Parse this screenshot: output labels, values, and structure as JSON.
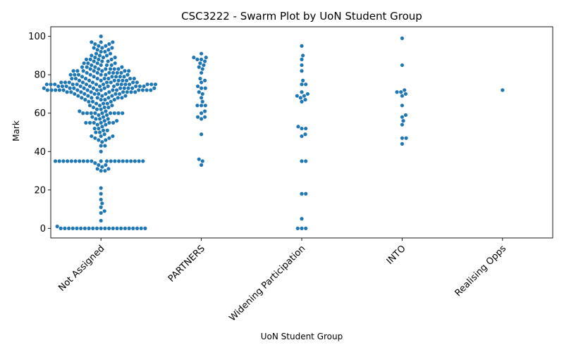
{
  "chart_data": {
    "type": "scatter",
    "subtype": "swarm",
    "title": "CSC3222 - Swarm Plot by UoN Student Group",
    "xlabel": "UoN Student Group",
    "ylabel": "Mark",
    "categories": [
      "Not Assigned",
      "PARTNERS",
      "Widening Participation",
      "INTO",
      "Realising Opps"
    ],
    "ylim": [
      -5,
      105
    ],
    "yticks": [
      0,
      20,
      40,
      60,
      80,
      100
    ],
    "ytick_labels": [
      "0",
      "20",
      "40",
      "60",
      "80",
      "100"
    ],
    "point_color": "#1f77b4",
    "grid": false,
    "series": [
      {
        "category": "Not Assigned",
        "values": [
          0,
          0,
          0,
          0,
          0,
          0,
          0,
          0,
          0,
          0,
          0,
          0,
          0,
          0,
          0,
          0,
          0,
          0,
          0,
          0,
          0,
          0,
          1,
          4,
          8,
          9,
          11,
          13,
          15,
          18,
          21,
          30,
          30,
          31,
          31,
          32,
          33,
          33,
          34,
          35,
          35,
          35,
          35,
          35,
          35,
          35,
          35,
          35,
          35,
          35,
          35,
          35,
          35,
          35,
          35,
          35,
          35,
          35,
          35,
          35,
          40,
          43,
          43,
          45,
          46,
          46,
          47,
          47,
          48,
          48,
          48,
          49,
          50,
          50,
          51,
          51,
          52,
          52,
          53,
          54,
          54,
          55,
          55,
          55,
          55,
          55,
          55,
          56,
          56,
          57,
          57,
          57,
          58,
          58,
          59,
          59,
          60,
          60,
          60,
          60,
          60,
          60,
          60,
          60,
          60,
          61,
          61,
          62,
          62,
          63,
          63,
          63,
          64,
          64,
          64,
          65,
          65,
          65,
          66,
          66,
          66,
          67,
          67,
          67,
          67,
          68,
          68,
          68,
          68,
          68,
          68,
          69,
          69,
          69,
          69,
          69,
          70,
          70,
          70,
          70,
          70,
          70,
          70,
          71,
          71,
          71,
          71,
          71,
          71,
          71,
          71,
          71,
          72,
          72,
          72,
          72,
          72,
          72,
          72,
          72,
          72,
          72,
          72,
          72,
          72,
          72,
          72,
          73,
          73,
          73,
          73,
          73,
          73,
          73,
          73,
          73,
          73,
          73,
          74,
          74,
          74,
          74,
          74,
          74,
          74,
          74,
          74,
          74,
          74,
          75,
          75,
          75,
          75,
          75,
          75,
          75,
          75,
          75,
          75,
          75,
          75,
          75,
          75,
          75,
          76,
          76,
          76,
          76,
          76,
          76,
          76,
          76,
          76,
          77,
          77,
          77,
          77,
          77,
          77,
          77,
          78,
          78,
          78,
          78,
          78,
          78,
          78,
          78,
          79,
          79,
          79,
          79,
          79,
          79,
          80,
          80,
          80,
          80,
          80,
          80,
          80,
          81,
          81,
          81,
          81,
          81,
          81,
          82,
          82,
          82,
          82,
          82,
          82,
          82,
          83,
          83,
          83,
          83,
          83,
          83,
          84,
          84,
          84,
          84,
          85,
          85,
          85,
          85,
          86,
          86,
          86,
          86,
          87,
          87,
          87,
          88,
          88,
          88,
          88,
          89,
          89,
          89,
          90,
          90,
          90,
          91,
          91,
          92,
          92,
          93,
          93,
          94,
          94,
          94,
          95,
          95,
          96,
          96,
          97,
          97,
          97,
          100
        ]
      },
      {
        "category": "PARTNERS",
        "values": [
          33,
          35,
          36,
          49,
          57,
          58,
          58,
          60,
          61,
          64,
          64,
          64,
          66,
          68,
          70,
          71,
          73,
          73,
          74,
          76,
          77,
          78,
          81,
          83,
          84,
          85,
          86,
          87,
          88,
          88,
          89,
          89,
          91
        ]
      },
      {
        "category": "Widening Participation",
        "values": [
          0,
          0,
          0,
          5,
          18,
          18,
          35,
          35,
          48,
          49,
          52,
          52,
          53,
          66,
          67,
          68,
          69,
          69,
          70,
          71,
          75,
          75,
          77,
          82,
          85,
          88,
          90,
          95
        ]
      },
      {
        "category": "INTO",
        "values": [
          44,
          47,
          47,
          54,
          56,
          58,
          59,
          64,
          69,
          70,
          71,
          71,
          72,
          85,
          99
        ]
      },
      {
        "category": "Realising Opps",
        "values": [
          72
        ]
      }
    ]
  }
}
